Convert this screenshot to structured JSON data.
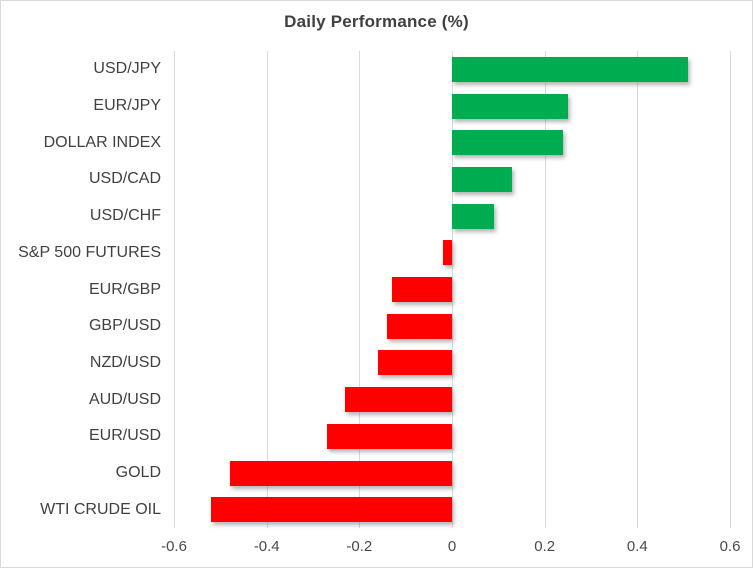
{
  "chart_data": {
    "type": "bar",
    "orientation": "horizontal",
    "title": "Daily Performance (%)",
    "categories": [
      "USD/JPY",
      "EUR/JPY",
      "DOLLAR INDEX",
      "USD/CAD",
      "USD/CHF",
      "S&P 500 FUTURES",
      "EUR/GBP",
      "GBP/USD",
      "NZD/USD",
      "AUD/USD",
      "EUR/USD",
      "GOLD",
      "WTI CRUDE OIL"
    ],
    "values": [
      0.51,
      0.25,
      0.24,
      0.13,
      0.09,
      -0.02,
      -0.13,
      -0.14,
      -0.16,
      -0.23,
      -0.27,
      -0.48,
      -0.52
    ],
    "xlim": [
      -0.6,
      0.6
    ],
    "xticks": [
      -0.6,
      -0.4,
      -0.2,
      0,
      0.2,
      0.4,
      0.6
    ],
    "xtick_labels": [
      "-0.6",
      "-0.4",
      "-0.2",
      "0",
      "0.2",
      "0.4",
      "0.6"
    ],
    "xlabel": "",
    "ylabel": "",
    "grid": true,
    "legend": "none",
    "colors": {
      "positive": "#00AC50",
      "negative": "#FF0000",
      "gridline": "#D9D9D9",
      "title_text": "#404040",
      "category_text": "#404040",
      "tick_text": "#494949",
      "background": "#FFFFFF",
      "border": "#D9D9D9"
    }
  }
}
